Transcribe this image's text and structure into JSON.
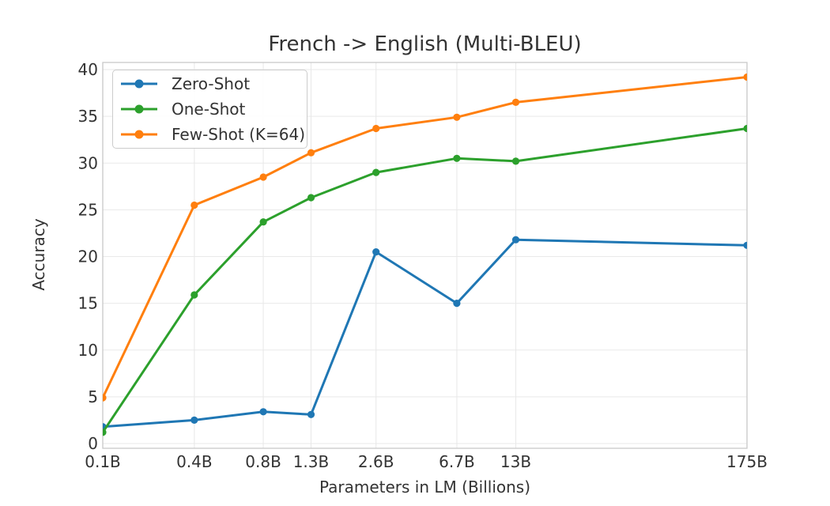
{
  "chart_data": {
    "type": "line",
    "title": "French -> English (Multi-BLEU)",
    "xlabel": "Parameters in LM (Billions)",
    "ylabel": "Accuracy",
    "x_scale": "log",
    "grid": true,
    "legend_position": "upper left",
    "x": [
      0.125,
      0.35,
      0.76,
      1.3,
      2.7,
      6.7,
      13,
      175
    ],
    "x_tick_labels": [
      "0.1B",
      "0.4B",
      "0.8B",
      "1.3B",
      "2.6B",
      "6.7B",
      "13B",
      "175B"
    ],
    "xlim": [
      0.125,
      175
    ],
    "y_ticks": [
      0,
      5,
      10,
      15,
      20,
      25,
      30,
      35,
      40
    ],
    "ylim": [
      -0.5,
      40.8
    ],
    "series": [
      {
        "name": "Zero-Shot",
        "color": "#1f77b4",
        "values": [
          1.8,
          2.5,
          3.4,
          3.1,
          20.5,
          15.0,
          21.8,
          21.2
        ]
      },
      {
        "name": "One-Shot",
        "color": "#2ca02c",
        "values": [
          1.2,
          15.9,
          23.7,
          26.3,
          29.0,
          30.5,
          30.2,
          33.7
        ]
      },
      {
        "name": "Few-Shot (K=64)",
        "color": "#ff7f0e",
        "values": [
          4.9,
          25.5,
          28.5,
          31.1,
          33.7,
          34.9,
          36.5,
          39.2
        ]
      }
    ]
  }
}
